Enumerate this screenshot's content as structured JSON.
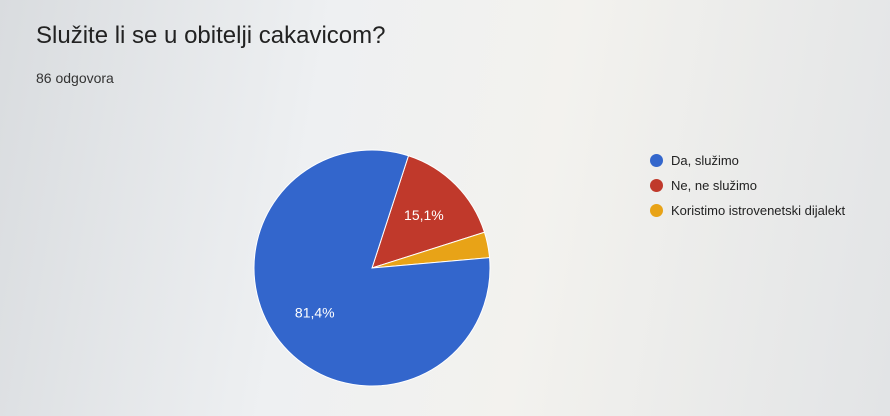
{
  "chart_data": {
    "type": "pie",
    "title": "Služite li se u obitelji cakavicom?",
    "subtitle": "86 odgovora",
    "slices": [
      {
        "label": "Da, služimo",
        "value": 81.4,
        "display": "81,4%",
        "color": "#3366cc"
      },
      {
        "label": "Ne, ne služimo",
        "value": 15.1,
        "display": "15,1%",
        "color": "#c0392b"
      },
      {
        "label": "Koristimo istrovenetski dijalekt",
        "value": 3.5,
        "display": "",
        "color": "#e8a317"
      }
    ],
    "legend_position": "right"
  }
}
